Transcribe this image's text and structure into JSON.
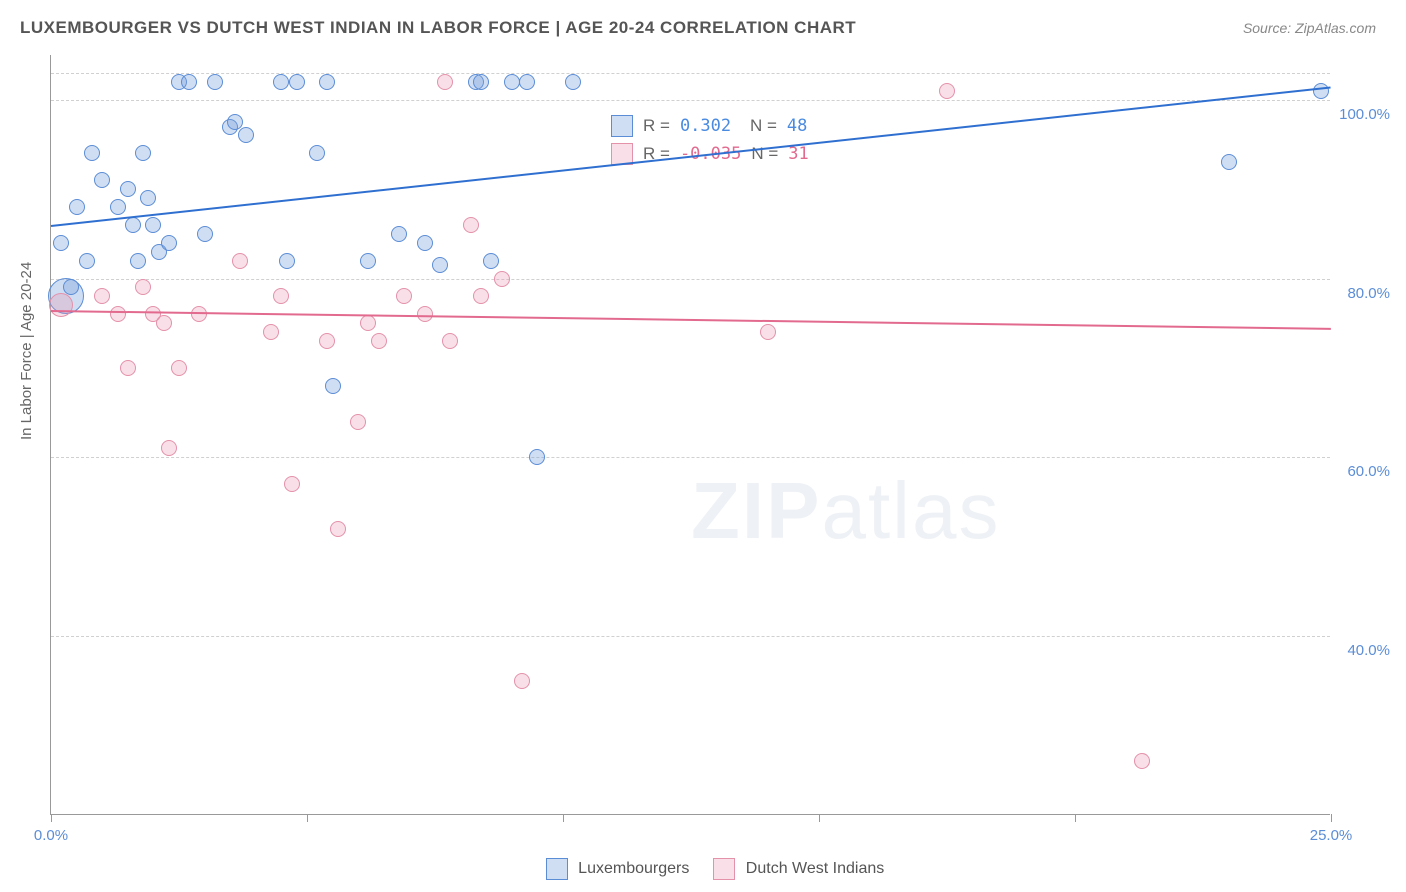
{
  "title": "LUXEMBOURGER VS DUTCH WEST INDIAN IN LABOR FORCE | AGE 20-24 CORRELATION CHART",
  "source": "Source: ZipAtlas.com",
  "y_axis_title": "In Labor Force | Age 20-24",
  "watermark": {
    "part1": "ZIP",
    "part2": "atlas"
  },
  "chart": {
    "type": "scatter",
    "xlim": [
      0,
      25
    ],
    "ylim": [
      20,
      105
    ],
    "x_ticks": [
      0,
      5,
      10,
      15,
      20,
      25
    ],
    "x_labels": {
      "0": "0.0%",
      "25": "25.0%"
    },
    "y_gridlines": [
      40,
      60,
      80,
      100,
      103
    ],
    "y_labels": {
      "40": "40.0%",
      "60": "60.0%",
      "80": "80.0%",
      "100": "100.0%"
    },
    "grid_color": "#d0d0d0",
    "background_color": "#ffffff",
    "series": [
      {
        "name": "Luxembourgers",
        "fill": "rgba(120,160,220,0.35)",
        "stroke": "#5b8dd6",
        "r_value": "0.302",
        "r_color": "#4a8be0",
        "n_value": "48",
        "trend": {
          "x1": 0,
          "y1": 86,
          "x2": 25,
          "y2": 101.5,
          "color": "#2f6fd0",
          "width": 2
        },
        "points": [
          {
            "x": 0.2,
            "y": 84,
            "r": 8
          },
          {
            "x": 0.3,
            "y": 78,
            "r": 18
          },
          {
            "x": 0.4,
            "y": 79,
            "r": 8
          },
          {
            "x": 0.5,
            "y": 88,
            "r": 8
          },
          {
            "x": 0.7,
            "y": 82,
            "r": 8
          },
          {
            "x": 0.8,
            "y": 94,
            "r": 8
          },
          {
            "x": 1.0,
            "y": 91,
            "r": 8
          },
          {
            "x": 1.3,
            "y": 88,
            "r": 8
          },
          {
            "x": 1.5,
            "y": 90,
            "r": 8
          },
          {
            "x": 1.6,
            "y": 86,
            "r": 8
          },
          {
            "x": 1.7,
            "y": 82,
            "r": 8
          },
          {
            "x": 1.8,
            "y": 94,
            "r": 8
          },
          {
            "x": 1.9,
            "y": 89,
            "r": 8
          },
          {
            "x": 2.0,
            "y": 86,
            "r": 8
          },
          {
            "x": 2.1,
            "y": 83,
            "r": 8
          },
          {
            "x": 2.3,
            "y": 84,
            "r": 8
          },
          {
            "x": 2.5,
            "y": 102,
            "r": 8
          },
          {
            "x": 2.7,
            "y": 102,
            "r": 8
          },
          {
            "x": 3.0,
            "y": 85,
            "r": 8
          },
          {
            "x": 3.2,
            "y": 102,
            "r": 8
          },
          {
            "x": 3.5,
            "y": 97,
            "r": 8
          },
          {
            "x": 3.6,
            "y": 97.5,
            "r": 8
          },
          {
            "x": 3.8,
            "y": 96,
            "r": 8
          },
          {
            "x": 4.5,
            "y": 102,
            "r": 8
          },
          {
            "x": 4.6,
            "y": 82,
            "r": 8
          },
          {
            "x": 4.8,
            "y": 102,
            "r": 8
          },
          {
            "x": 5.2,
            "y": 94,
            "r": 8
          },
          {
            "x": 5.4,
            "y": 102,
            "r": 8
          },
          {
            "x": 5.5,
            "y": 68,
            "r": 8
          },
          {
            "x": 6.2,
            "y": 82,
            "r": 8
          },
          {
            "x": 6.8,
            "y": 85,
            "r": 8
          },
          {
            "x": 7.3,
            "y": 84,
            "r": 8
          },
          {
            "x": 7.6,
            "y": 81.5,
            "r": 8
          },
          {
            "x": 8.3,
            "y": 102,
            "r": 8
          },
          {
            "x": 8.4,
            "y": 102,
            "r": 8
          },
          {
            "x": 8.6,
            "y": 82,
            "r": 8
          },
          {
            "x": 9.0,
            "y": 102,
            "r": 8
          },
          {
            "x": 9.3,
            "y": 102,
            "r": 8
          },
          {
            "x": 9.5,
            "y": 60,
            "r": 8
          },
          {
            "x": 10.2,
            "y": 102,
            "r": 8
          },
          {
            "x": 23.0,
            "y": 93,
            "r": 8
          },
          {
            "x": 24.8,
            "y": 101,
            "r": 8
          }
        ]
      },
      {
        "name": "Dutch West Indians",
        "fill": "rgba(235,150,175,0.30)",
        "stroke": "#e491aa",
        "r_value": "-0.035",
        "r_color": "#e26a8f",
        "n_value": "31",
        "trend": {
          "x1": 0,
          "y1": 76.5,
          "x2": 25,
          "y2": 74.5,
          "color": "#e26a8f",
          "width": 2
        },
        "points": [
          {
            "x": 0.2,
            "y": 77,
            "r": 12
          },
          {
            "x": 1.0,
            "y": 78,
            "r": 8
          },
          {
            "x": 1.3,
            "y": 76,
            "r": 8
          },
          {
            "x": 1.5,
            "y": 70,
            "r": 8
          },
          {
            "x": 1.8,
            "y": 79,
            "r": 8
          },
          {
            "x": 2.0,
            "y": 76,
            "r": 8
          },
          {
            "x": 2.2,
            "y": 75,
            "r": 8
          },
          {
            "x": 2.3,
            "y": 61,
            "r": 8
          },
          {
            "x": 2.5,
            "y": 70,
            "r": 8
          },
          {
            "x": 2.9,
            "y": 76,
            "r": 8
          },
          {
            "x": 3.7,
            "y": 82,
            "r": 8
          },
          {
            "x": 4.3,
            "y": 74,
            "r": 8
          },
          {
            "x": 4.5,
            "y": 78,
            "r": 8
          },
          {
            "x": 4.7,
            "y": 57,
            "r": 8
          },
          {
            "x": 5.4,
            "y": 73,
            "r": 8
          },
          {
            "x": 5.6,
            "y": 52,
            "r": 8
          },
          {
            "x": 6.0,
            "y": 64,
            "r": 8
          },
          {
            "x": 6.2,
            "y": 75,
            "r": 8
          },
          {
            "x": 6.4,
            "y": 73,
            "r": 8
          },
          {
            "x": 6.9,
            "y": 78,
            "r": 8
          },
          {
            "x": 7.3,
            "y": 76,
            "r": 8
          },
          {
            "x": 7.7,
            "y": 102,
            "r": 8
          },
          {
            "x": 7.8,
            "y": 73,
            "r": 8
          },
          {
            "x": 8.2,
            "y": 86,
            "r": 8
          },
          {
            "x": 8.4,
            "y": 78,
            "r": 8
          },
          {
            "x": 8.8,
            "y": 80,
            "r": 8
          },
          {
            "x": 9.2,
            "y": 35,
            "r": 8
          },
          {
            "x": 14.0,
            "y": 74,
            "r": 8
          },
          {
            "x": 17.5,
            "y": 101,
            "r": 8
          },
          {
            "x": 21.3,
            "y": 26,
            "r": 8
          }
        ]
      }
    ]
  },
  "stats_labels": {
    "r": "R =",
    "n": "N ="
  }
}
